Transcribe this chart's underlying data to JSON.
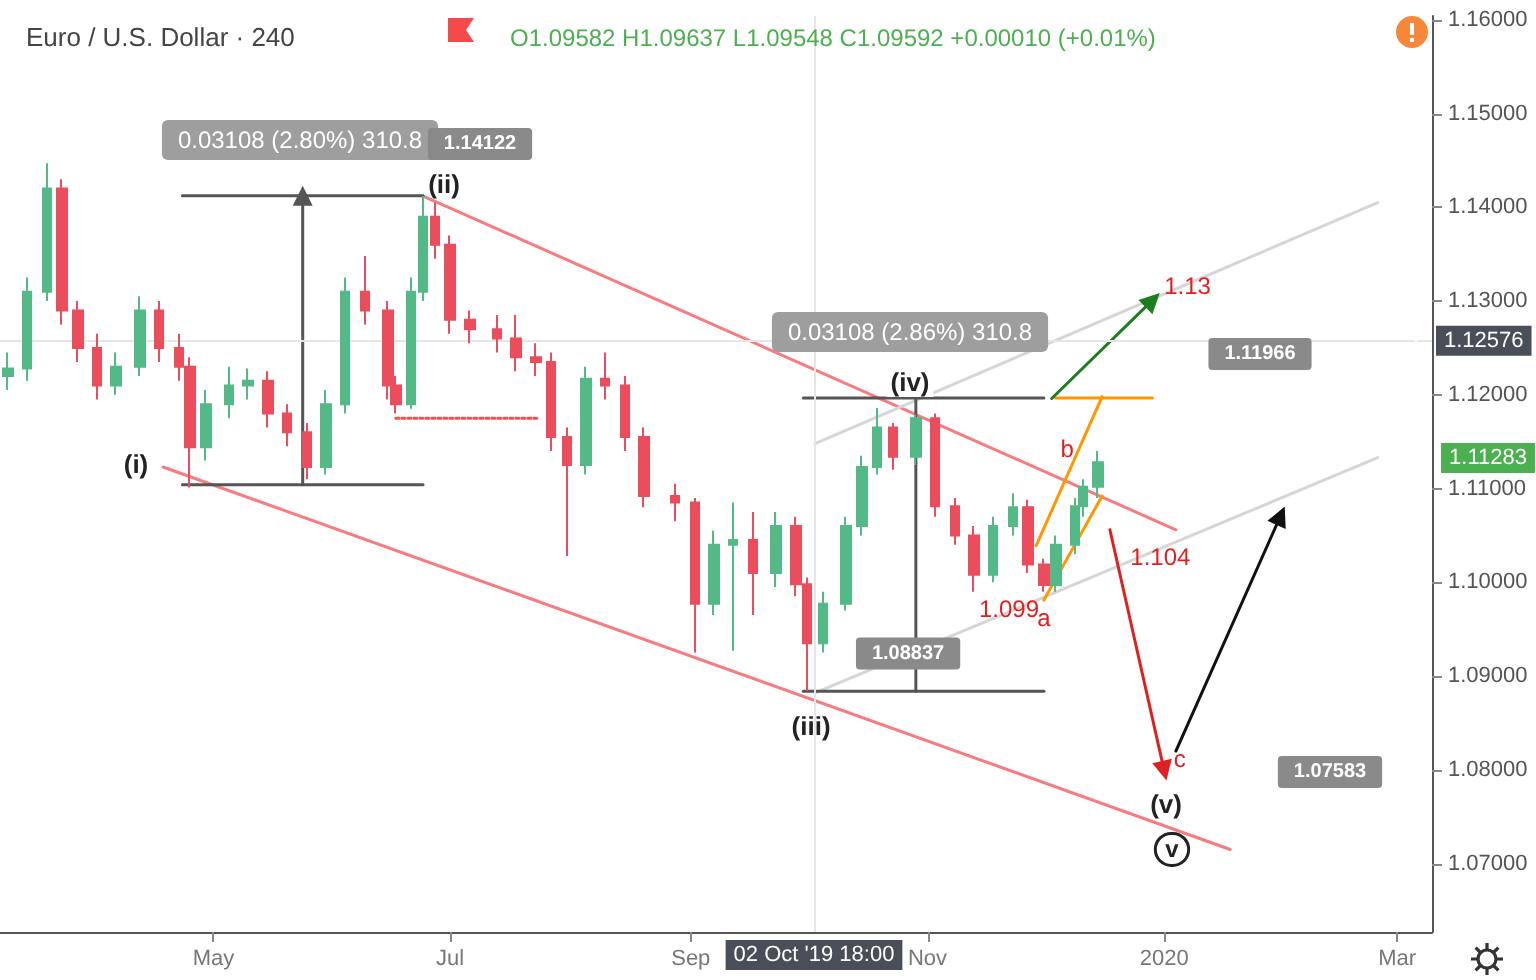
{
  "chart_data": {
    "type": "candlestick",
    "title": "Euro / U.S. Dollar · 240",
    "subtitle": "O1.09582 H1.09637 L1.09548 C1.09592 +0.00010 (+0.01%)",
    "x": [
      "2019-03-09",
      "2019-03-14",
      "2019-03-19",
      "2019-03-23",
      "2019-03-27",
      "2019-04-01",
      "2019-04-06",
      "2019-04-12",
      "2019-04-17",
      "2019-04-22",
      "2019-04-25",
      "2019-04-29",
      "2019-05-05",
      "2019-05-10",
      "2019-05-15",
      "2019-05-20",
      "2019-05-25",
      "2019-05-30",
      "2019-06-04",
      "2019-06-09",
      "2019-06-15",
      "2019-06-17",
      "2019-06-21",
      "2019-06-24",
      "2019-06-27",
      "2019-07-01",
      "2019-07-06",
      "2019-07-13",
      "2019-07-18",
      "2019-07-23",
      "2019-07-27",
      "2019-07-31",
      "2019-08-05",
      "2019-08-10",
      "2019-08-15",
      "2019-08-20",
      "2019-08-28",
      "2019-09-02",
      "2019-09-07",
      "2019-09-12",
      "2019-09-17",
      "2019-09-23",
      "2019-09-28",
      "2019-10-01",
      "2019-10-05",
      "2019-10-11",
      "2019-10-15",
      "2019-10-19",
      "2019-10-23",
      "2019-10-29",
      "2019-11-03",
      "2019-11-08",
      "2019-11-13",
      "2019-11-18",
      "2019-11-23",
      "2019-11-27",
      "2019-12-01",
      "2019-12-04",
      "2019-12-09",
      "2019-12-11",
      "2019-12-15"
    ],
    "ohlc": [
      [
        1.122,
        1.1245,
        1.1205,
        1.1228
      ],
      [
        1.1228,
        1.1325,
        1.1215,
        1.131
      ],
      [
        1.131,
        1.1447,
        1.13,
        1.142
      ],
      [
        1.142,
        1.143,
        1.1275,
        1.129
      ],
      [
        1.129,
        1.13,
        1.1235,
        1.125
      ],
      [
        1.125,
        1.1265,
        1.1195,
        1.121
      ],
      [
        1.121,
        1.1245,
        1.12,
        1.123
      ],
      [
        1.123,
        1.1305,
        1.122,
        1.129
      ],
      [
        1.129,
        1.13,
        1.1235,
        1.125
      ],
      [
        1.125,
        1.1265,
        1.1215,
        1.123
      ],
      [
        1.123,
        1.124,
        1.1101,
        1.1144
      ],
      [
        1.1144,
        1.1205,
        1.113,
        1.119
      ],
      [
        1.119,
        1.123,
        1.1175,
        1.121
      ],
      [
        1.121,
        1.1228,
        1.1195,
        1.1215
      ],
      [
        1.1215,
        1.1225,
        1.1165,
        1.118
      ],
      [
        1.118,
        1.119,
        1.1145,
        1.116
      ],
      [
        1.116,
        1.117,
        1.111,
        1.1123
      ],
      [
        1.1123,
        1.1205,
        1.1115,
        1.119
      ],
      [
        1.119,
        1.1325,
        1.118,
        1.131
      ],
      [
        1.131,
        1.1348,
        1.1275,
        1.129
      ],
      [
        1.129,
        1.13,
        1.1195,
        1.121
      ],
      [
        1.121,
        1.122,
        1.118,
        1.119
      ],
      [
        1.119,
        1.1325,
        1.1185,
        1.131
      ],
      [
        1.131,
        1.1412,
        1.13,
        1.139
      ],
      [
        1.139,
        1.1405,
        1.1345,
        1.136
      ],
      [
        1.136,
        1.137,
        1.1265,
        1.128
      ],
      [
        1.128,
        1.129,
        1.1255,
        1.127
      ],
      [
        1.127,
        1.1285,
        1.1245,
        1.126
      ],
      [
        1.126,
        1.1285,
        1.1225,
        1.124
      ],
      [
        1.124,
        1.1255,
        1.122,
        1.1235
      ],
      [
        1.1235,
        1.1245,
        1.114,
        1.1155
      ],
      [
        1.1155,
        1.1165,
        1.1028,
        1.1125
      ],
      [
        1.1125,
        1.123,
        1.1115,
        1.1217
      ],
      [
        1.1217,
        1.1245,
        1.1195,
        1.121
      ],
      [
        1.121,
        1.122,
        1.114,
        1.1155
      ],
      [
        1.1155,
        1.1165,
        1.108,
        1.1092
      ],
      [
        1.1092,
        1.1105,
        1.1065,
        1.1085
      ],
      [
        1.1085,
        1.109,
        1.0925,
        1.0977
      ],
      [
        1.0977,
        1.1055,
        1.0965,
        1.104
      ],
      [
        1.104,
        1.1085,
        1.0927,
        1.1045
      ],
      [
        1.1045,
        1.1075,
        1.0965,
        1.101
      ],
      [
        1.101,
        1.1075,
        1.0995,
        1.106
      ],
      [
        1.106,
        1.107,
        1.0985,
        1.0998
      ],
      [
        1.0998,
        1.1005,
        1.0884,
        1.0935
      ],
      [
        1.0935,
        1.099,
        1.0925,
        1.0977
      ],
      [
        1.0977,
        1.107,
        1.097,
        1.106
      ],
      [
        1.106,
        1.1135,
        1.105,
        1.1123
      ],
      [
        1.1123,
        1.1186,
        1.1115,
        1.1165
      ],
      [
        1.1165,
        1.117,
        1.112,
        1.1134
      ],
      [
        1.1134,
        1.1179,
        1.1125,
        1.1175
      ],
      [
        1.1175,
        1.118,
        1.107,
        1.1081
      ],
      [
        1.1081,
        1.109,
        1.104,
        1.105
      ],
      [
        1.105,
        1.106,
        1.099,
        1.1008
      ],
      [
        1.1008,
        1.107,
        1.1,
        1.106
      ],
      [
        1.106,
        1.1095,
        1.105,
        1.108
      ],
      [
        1.108,
        1.1088,
        1.101,
        1.1019
      ],
      [
        1.1019,
        1.1025,
        1.099,
        1.0997
      ],
      [
        1.0997,
        1.105,
        1.099,
        1.104
      ],
      [
        1.104,
        1.109,
        1.103,
        1.1081
      ],
      [
        1.1081,
        1.111,
        1.107,
        1.1102
      ],
      [
        1.1102,
        1.114,
        1.109,
        1.1128
      ]
    ],
    "series": [
      {
        "type": "line",
        "color": "#f77c80",
        "x": [
          "2019-06-24",
          "2020-01-04"
        ],
        "values": [
          1.1412,
          1.1056
        ]
      },
      {
        "type": "line",
        "color": "#f77c80",
        "x": [
          "2019-04-18",
          "2020-01-18"
        ],
        "values": [
          1.1123,
          1.0715
        ]
      },
      {
        "type": "line",
        "color": "#d6d6d6",
        "x": [
          "2019-10-03",
          "2020-02-25"
        ],
        "values": [
          1.1148,
          1.1405
        ]
      },
      {
        "type": "line",
        "color": "#d6d6d6",
        "x": [
          "2019-10-03",
          "2020-02-25"
        ],
        "values": [
          1.0882,
          1.1133
        ]
      },
      {
        "type": "line",
        "color": "#ff9800",
        "x": [
          "2019-11-29",
          "2019-12-16"
        ],
        "values": [
          1.1039,
          1.1198
        ]
      },
      {
        "type": "line",
        "color": "#ff9800",
        "x": [
          "2019-12-01",
          "2019-12-16"
        ],
        "values": [
          1.0981,
          1.1092
        ]
      },
      {
        "type": "line",
        "color": "#ff9800",
        "x": [
          "2019-12-04",
          "2019-12-29"
        ],
        "values": [
          1.11966,
          1.11966
        ]
      },
      {
        "type": "line",
        "color": "#555555",
        "x": [
          "2019-04-23",
          "2019-06-24"
        ],
        "values": [
          1.14122,
          1.14122
        ]
      },
      {
        "type": "line",
        "color": "#555555",
        "x": [
          "2019-04-23",
          "2019-06-24"
        ],
        "values": [
          1.1104,
          1.1104
        ]
      },
      {
        "type": "line",
        "color": "#555555",
        "marker": "triangle",
        "x": [
          "2019-05-24",
          "2019-05-24"
        ],
        "values": [
          1.1104,
          1.14122
        ]
      },
      {
        "type": "line",
        "color": "#555555",
        "x": [
          "2019-09-30",
          "2019-12-01"
        ],
        "values": [
          1.11966,
          1.11966
        ]
      },
      {
        "type": "line",
        "color": "#555555",
        "x": [
          "2019-09-30",
          "2019-12-01"
        ],
        "values": [
          1.08837,
          1.08837
        ]
      },
      {
        "type": "line",
        "color": "#555555",
        "x": [
          "2019-10-29",
          "2019-10-29"
        ],
        "values": [
          1.11966,
          1.08837
        ]
      },
      {
        "type": "line",
        "color": "#f05050",
        "line_style": "dotted",
        "x": [
          "2019-06-17",
          "2019-07-24"
        ],
        "values": [
          1.1175,
          1.1175
        ]
      },
      {
        "type": "line",
        "color": "#1e7d1e",
        "marker": "triangle",
        "x": [
          "2019-12-03",
          "2019-12-29"
        ],
        "values": [
          1.1196,
          1.1301
        ]
      },
      {
        "type": "line",
        "color": "#e02020",
        "marker": "triangle",
        "x": [
          "2019-12-18",
          "2020-01-01"
        ],
        "values": [
          1.1056,
          1.0799
        ]
      },
      {
        "type": "line",
        "color": "#111111",
        "marker": "triangle",
        "x": [
          "2020-01-04",
          "2020-01-31"
        ],
        "values": [
          1.082,
          1.1071
        ]
      }
    ],
    "xlim": [
      "2019-03-07",
      "2020-03-10"
    ],
    "xticks": [
      {
        "value": "2019-05-01",
        "label": "May"
      },
      {
        "value": "2019-07-01",
        "label": "Jul"
      },
      {
        "value": "2019-09-01",
        "label": "Sep"
      },
      {
        "value": "2019-11-01",
        "label": "Nov"
      },
      {
        "value": "2020-01-01",
        "label": "2020"
      },
      {
        "value": "2020-03-01",
        "label": "Mar"
      }
    ],
    "ylim": [
      1.0627,
      1.1604
    ],
    "yticks": [
      {
        "value": 1.07,
        "label": "1.07000"
      },
      {
        "value": 1.08,
        "label": "1.08000"
      },
      {
        "value": 1.09,
        "label": "1.09000"
      },
      {
        "value": 1.1,
        "label": "1.10000"
      },
      {
        "value": 1.11,
        "label": "1.11000"
      },
      {
        "value": 1.12,
        "label": "1.12000"
      },
      {
        "value": 1.13,
        "label": "1.13000"
      },
      {
        "value": 1.14,
        "label": "1.14000"
      },
      {
        "value": 1.15,
        "label": "1.15000"
      },
      {
        "value": 1.16,
        "label": "1.16000"
      }
    ],
    "ref_lines": [
      {
        "axis": "y",
        "value": 1.12576,
        "label": "1.12576",
        "color": "#e6e6e6"
      },
      {
        "axis": "x",
        "value": "2019-10-02T18:00",
        "label": "02 Oct '19 18:00",
        "color": "#e6e6e6"
      }
    ],
    "annotations": [
      "0.03108 (2.80%) 310.8",
      "1.14122",
      "(ii)",
      "(i)",
      {
        "text": "(iii)",
        "x": "2019-10-02",
        "y": 1.0847
      },
      "(iv)",
      "0.03108 (2.86%) 310.8",
      "1.11966",
      {
        "text": "1.13",
        "x": "2020-01-07",
        "y": 1.1316
      },
      {
        "text": "b",
        "x": "2019-12-07",
        "y": 1.1142
      },
      {
        "text": "1.104",
        "x": "2019-12-31",
        "y": 1.1027
      },
      {
        "text": "1.099",
        "x": "2019-11-22",
        "y": 1.0972
      },
      "a",
      {
        "text": "c",
        "x": "2020-01-05",
        "y": 1.0811
      },
      "(v)",
      {
        "text": "v",
        "x": "2020-01-03",
        "y": 1.0715
      },
      {
        "text": "1.08837",
        "x": "2019-10-27",
        "y": 1.0924
      },
      "1.07583",
      "1.11283"
    ]
  }
}
